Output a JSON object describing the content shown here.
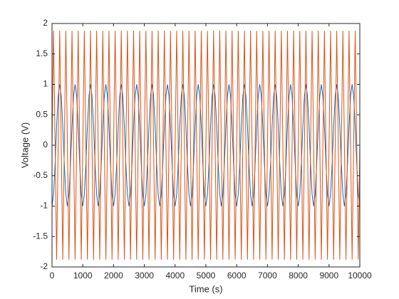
{
  "chart_data": {
    "type": "line",
    "xlabel": "Time (s)",
    "ylabel": "Voltage (V)",
    "x": [
      0,
      50,
      100,
      150,
      200,
      250,
      300,
      350,
      400,
      450,
      500,
      550,
      600,
      650,
      700,
      750,
      800,
      850,
      900,
      950,
      1000,
      1050,
      1100,
      1150,
      1200,
      1250,
      1300,
      1350,
      1400,
      1450,
      1500,
      1550,
      1600,
      1650,
      1700,
      1750,
      1800,
      1850,
      1900,
      1950,
      2000,
      2050,
      2100,
      2150,
      2200,
      2250,
      2300,
      2350,
      2400,
      2450,
      2500,
      2550,
      2600,
      2650,
      2700,
      2750,
      2800,
      2850,
      2900,
      2950,
      3000,
      3050,
      3100,
      3150,
      3200,
      3250,
      3300,
      3350,
      3400,
      3450,
      3500,
      3550,
      3600,
      3650,
      3700,
      3750,
      3800,
      3850,
      3900,
      3950,
      4000,
      4050,
      4100,
      4150,
      4200,
      4250,
      4300,
      4350,
      4400,
      4450,
      4500,
      4550,
      4600,
      4650,
      4700,
      4750,
      4800,
      4850,
      4900,
      4950,
      5000,
      5050,
      5100,
      5150,
      5200,
      5250,
      5300,
      5350,
      5400,
      5450,
      5500,
      5550,
      5600,
      5650,
      5700,
      5750,
      5800,
      5850,
      5900,
      5950,
      6000,
      6050,
      6100,
      6150,
      6200,
      6250,
      6300,
      6350,
      6400,
      6450,
      6500,
      6550,
      6600,
      6650,
      6700,
      6750,
      6800,
      6850,
      6900,
      6950,
      7000,
      7050,
      7100,
      7150,
      7200,
      7250,
      7300,
      7350,
      7400,
      7450,
      7500,
      7550,
      7600,
      7650,
      7700,
      7750,
      7800,
      7850,
      7900,
      7950,
      8000,
      8050,
      8100,
      8150,
      8200,
      8250,
      8300,
      8350,
      8400,
      8450,
      8500,
      8550,
      8600,
      8650,
      8700,
      8750,
      8800,
      8850,
      8900,
      8950,
      9000,
      9050,
      9100,
      9150,
      9200,
      9250,
      9300,
      9350,
      9400,
      9450,
      9500,
      9550,
      9600,
      9650,
      9700,
      9750,
      9800,
      9850,
      9900,
      9950,
      10000
    ],
    "series": [
      {
        "color": "#0072BD",
        "values": [
          -1,
          -0.81,
          -0.31,
          0.31,
          0.81,
          1,
          0.81,
          0.31,
          -0.31,
          -0.81,
          -1,
          -0.81,
          -0.31,
          0.31,
          0.81,
          1,
          0.81,
          0.31,
          -0.31,
          -0.81,
          -1,
          -0.81,
          -0.31,
          0.31,
          0.81,
          1,
          0.81,
          0.31,
          -0.31,
          -0.81,
          -1,
          -0.81,
          -0.31,
          0.31,
          0.81,
          1,
          0.81,
          0.31,
          -0.31,
          -0.81,
          -1,
          -0.81,
          -0.31,
          0.31,
          0.81,
          1,
          0.81,
          0.31,
          -0.31,
          -0.81,
          -1,
          -0.81,
          -0.31,
          0.31,
          0.81,
          1,
          0.81,
          0.31,
          -0.31,
          -0.81,
          -1,
          -0.81,
          -0.31,
          0.31,
          0.81,
          1,
          0.81,
          0.31,
          -0.31,
          -0.81,
          -1,
          -0.81,
          -0.31,
          0.31,
          0.81,
          1,
          0.81,
          0.31,
          -0.31,
          -0.81,
          -1,
          -0.81,
          -0.31,
          0.31,
          0.81,
          1,
          0.81,
          0.31,
          -0.31,
          -0.81,
          -1,
          -0.81,
          -0.31,
          0.31,
          0.81,
          1,
          0.81,
          0.31,
          -0.31,
          -0.81,
          -1,
          -0.81,
          -0.31,
          0.31,
          0.81,
          1,
          0.81,
          0.31,
          -0.31,
          -0.81,
          -1,
          -0.81,
          -0.31,
          0.31,
          0.81,
          1,
          0.81,
          0.31,
          -0.31,
          -0.81,
          -1,
          -0.81,
          -0.31,
          0.31,
          0.81,
          1,
          0.81,
          0.31,
          -0.31,
          -0.81,
          -1,
          -0.81,
          -0.31,
          0.31,
          0.81,
          1,
          0.81,
          0.31,
          -0.31,
          -0.81,
          -1,
          -0.81,
          -0.31,
          0.31,
          0.81,
          1,
          0.81,
          0.31,
          -0.31,
          -0.81,
          -1,
          -0.81,
          -0.31,
          0.31,
          0.81,
          1,
          0.81,
          0.31,
          -0.31,
          -0.81,
          -1,
          -0.81,
          -0.31,
          0.31,
          0.81,
          1,
          0.81,
          0.31,
          -0.31,
          -0.81,
          -1,
          -0.81,
          -0.31,
          0.31,
          0.81,
          1,
          0.81,
          0.31,
          -0.31,
          -0.81,
          -1,
          -0.81,
          -0.31,
          0.31,
          0.81,
          1,
          0.81,
          0.31,
          -0.31,
          -0.81,
          -1,
          -0.81,
          -0.31,
          0.31,
          0.81,
          1,
          0.81,
          0.31,
          -0.31,
          -0.81,
          -1
        ]
      },
      {
        "color": "#D95319",
        "values": [
          0,
          1.88,
          0,
          -1.88,
          0,
          1.88,
          0,
          -1.88,
          0,
          1.88,
          0,
          -1.88,
          0,
          1.88,
          0,
          -1.88,
          0,
          1.88,
          0,
          -1.88,
          0,
          1.88,
          0,
          -1.88,
          0,
          1.88,
          0,
          -1.88,
          0,
          1.88,
          0,
          -1.88,
          0,
          1.88,
          0,
          -1.88,
          0,
          1.88,
          0,
          -1.88,
          0,
          1.88,
          0,
          -1.88,
          0,
          1.88,
          0,
          -1.88,
          0,
          1.88,
          0,
          -1.88,
          0,
          1.88,
          0,
          -1.88,
          0,
          1.88,
          0,
          -1.88,
          0,
          1.88,
          0,
          -1.88,
          0,
          1.88,
          0,
          -1.88,
          0,
          1.88,
          0,
          -1.88,
          0,
          1.88,
          0,
          -1.88,
          0,
          1.88,
          0,
          -1.88,
          0,
          1.88,
          0,
          -1.88,
          0,
          1.88,
          0,
          -1.88,
          0,
          1.88,
          0,
          -1.88,
          0,
          1.88,
          0,
          -1.88,
          0,
          1.88,
          0,
          -1.88,
          0,
          1.88,
          0,
          -1.88,
          0,
          1.88,
          0,
          -1.88,
          0,
          1.88,
          0,
          -1.88,
          0,
          1.88,
          0,
          -1.88,
          0,
          1.88,
          0,
          -1.88,
          0,
          1.88,
          0,
          -1.88,
          0,
          1.88,
          0,
          -1.88,
          0,
          1.88,
          0,
          -1.88,
          0,
          1.88,
          0,
          -1.88,
          0,
          1.88,
          0,
          -1.88,
          0,
          1.88,
          0,
          -1.88,
          0,
          1.88,
          0,
          -1.88,
          0,
          1.88,
          0,
          -1.88,
          0,
          1.88,
          0,
          -1.88,
          0,
          1.88,
          0,
          -1.88,
          0,
          1.88,
          0,
          -1.88,
          0,
          1.88,
          0,
          -1.88,
          0,
          1.88,
          0,
          -1.88,
          0,
          1.88,
          0,
          -1.88,
          0,
          1.88,
          0,
          -1.88,
          0,
          1.88,
          0,
          -1.88,
          0,
          1.88,
          0,
          -1.88,
          0,
          1.88,
          0,
          -1.88,
          0,
          1.88,
          0,
          -1.88,
          0,
          1.88,
          0,
          -1.88,
          0
        ]
      }
    ],
    "xlim": [
      0,
      10000
    ],
    "xticks": [
      0,
      1000,
      2000,
      3000,
      4000,
      5000,
      6000,
      7000,
      8000,
      9000,
      10000
    ],
    "ylim": [
      -2,
      2
    ],
    "yticks": [
      -2,
      -1.5,
      -1,
      -0.5,
      0,
      0.5,
      1,
      1.5,
      2
    ]
  }
}
